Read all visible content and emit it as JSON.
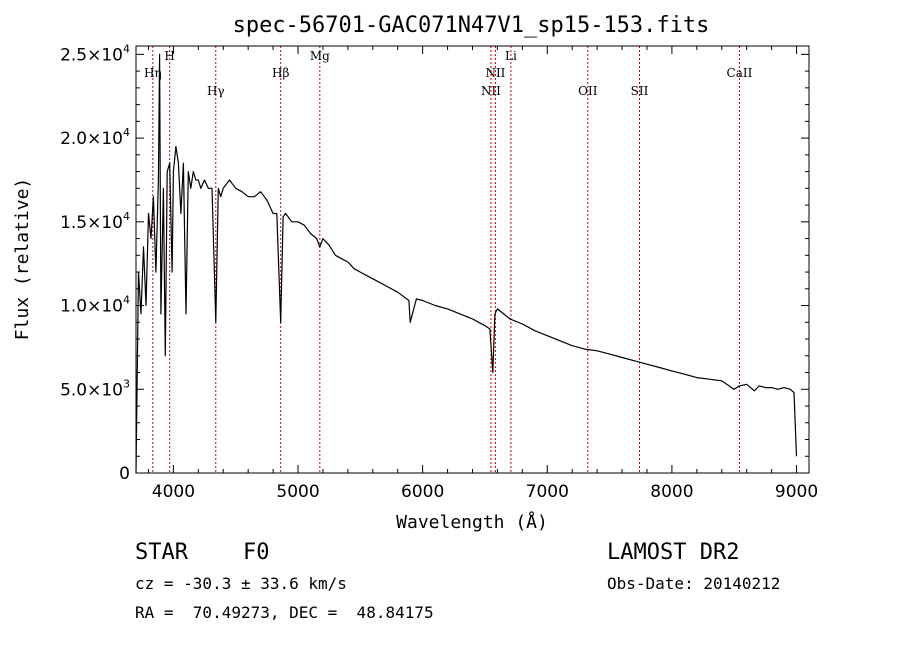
{
  "chart_data": {
    "type": "line",
    "title": "spec-56701-GAC071N47V1_sp15-153.fits",
    "xlabel": "Wavelength (Å)",
    "ylabel": "Flux (relative)",
    "xlim": [
      3700,
      9100
    ],
    "ylim": [
      0,
      25500
    ],
    "x_ticks": [
      4000,
      5000,
      6000,
      7000,
      8000,
      9000
    ],
    "x_tick_labels": [
      "4000",
      "5000",
      "6000",
      "7000",
      "8000",
      "9000"
    ],
    "y_ticks": [
      0,
      5000,
      10000,
      15000,
      20000,
      25000
    ],
    "y_tick_labels": [
      {
        "base": "0",
        "exp": ""
      },
      {
        "base": "5.0×10",
        "exp": "3"
      },
      {
        "base": "1.0×10",
        "exp": "4"
      },
      {
        "base": "1.5×10",
        "exp": "4"
      },
      {
        "base": "2.0×10",
        "exp": "4"
      },
      {
        "base": "2.5×10",
        "exp": "4"
      }
    ],
    "grid": false,
    "line_color": "#000000",
    "marker_line_color": "#cc0000",
    "series": [
      {
        "x": [
          3700,
          3720,
          3740,
          3760,
          3780,
          3800,
          3820,
          3840,
          3860,
          3880,
          3889,
          3900,
          3920,
          3935,
          3950,
          3970,
          3990,
          4000,
          4020,
          4040,
          4060,
          4080,
          4101,
          4120,
          4140,
          4160,
          4180,
          4200,
          4220,
          4250,
          4280,
          4310,
          4340,
          4360,
          4380,
          4400,
          4450,
          4500,
          4550,
          4600,
          4650,
          4700,
          4750,
          4800,
          4830,
          4861,
          4880,
          4900,
          4950,
          5000,
          5050,
          5100,
          5150,
          5175,
          5200,
          5250,
          5300,
          5350,
          5400,
          5450,
          5500,
          5600,
          5700,
          5800,
          5890,
          5900,
          5950,
          6000,
          6100,
          6200,
          6300,
          6400,
          6450,
          6500,
          6540,
          6563,
          6580,
          6600,
          6650,
          6700,
          6800,
          6900,
          7000,
          7100,
          7200,
          7300,
          7400,
          7500,
          7600,
          7700,
          7800,
          7900,
          8000,
          8100,
          8200,
          8300,
          8400,
          8498,
          8542,
          8600,
          8662,
          8700,
          8750,
          8800,
          8850,
          8900,
          8950,
          8980,
          9000
        ],
        "y": [
          0,
          12000,
          9500,
          13500,
          10000,
          15500,
          14000,
          16500,
          12000,
          17500,
          25000,
          9500,
          17000,
          7000,
          18000,
          18500,
          12000,
          18000,
          19500,
          18500,
          15500,
          18500,
          9500,
          18000,
          17000,
          18000,
          17500,
          17500,
          17000,
          17500,
          17000,
          17000,
          9000,
          17000,
          16500,
          17000,
          17500,
          17000,
          16800,
          16500,
          16500,
          16800,
          16300,
          15500,
          15500,
          9000,
          15300,
          15500,
          15000,
          15000,
          14800,
          14300,
          14000,
          13500,
          14000,
          13600,
          13000,
          12800,
          12600,
          12200,
          12000,
          11600,
          11200,
          10800,
          10300,
          9000,
          10400,
          10300,
          10000,
          9800,
          9500,
          9200,
          9000,
          8800,
          8600,
          6000,
          9500,
          9800,
          9500,
          9200,
          8900,
          8500,
          8200,
          7900,
          7600,
          7400,
          7300,
          7100,
          6900,
          6700,
          6500,
          6300,
          6100,
          5900,
          5700,
          5600,
          5500,
          5000,
          5200,
          5300,
          4900,
          5200,
          5100,
          5100,
          5000,
          5100,
          5000,
          4800,
          1000
        ]
      }
    ],
    "annotations": [
      {
        "label": "Hη",
        "wavelength": 3835,
        "row": 1
      },
      {
        "label": "H",
        "wavelength": 3970,
        "row": 0
      },
      {
        "label": "Hγ",
        "wavelength": 4340,
        "row": 2
      },
      {
        "label": "Hβ",
        "wavelength": 4861,
        "row": 1
      },
      {
        "label": "Mg",
        "wavelength": 5175,
        "row": 0
      },
      {
        "label": "NII",
        "wavelength": 6548,
        "row": 2
      },
      {
        "label": "NII",
        "wavelength": 6584,
        "row": 1
      },
      {
        "label": "Li",
        "wavelength": 6708,
        "row": 0
      },
      {
        "label": "OII",
        "wavelength": 7325,
        "row": 2
      },
      {
        "label": "SII",
        "wavelength": 7740,
        "row": 2
      },
      {
        "label": "CaII",
        "wavelength": 8542,
        "row": 1
      }
    ]
  },
  "footer": {
    "object_class": "STAR",
    "subclass": "F0",
    "survey": "LAMOST DR2",
    "cz": "cz = -30.3 ± 33.6 km/s",
    "obs_date": "Obs-Date: 20140212",
    "coords": "RA =  70.49273, DEC =  48.84175"
  }
}
